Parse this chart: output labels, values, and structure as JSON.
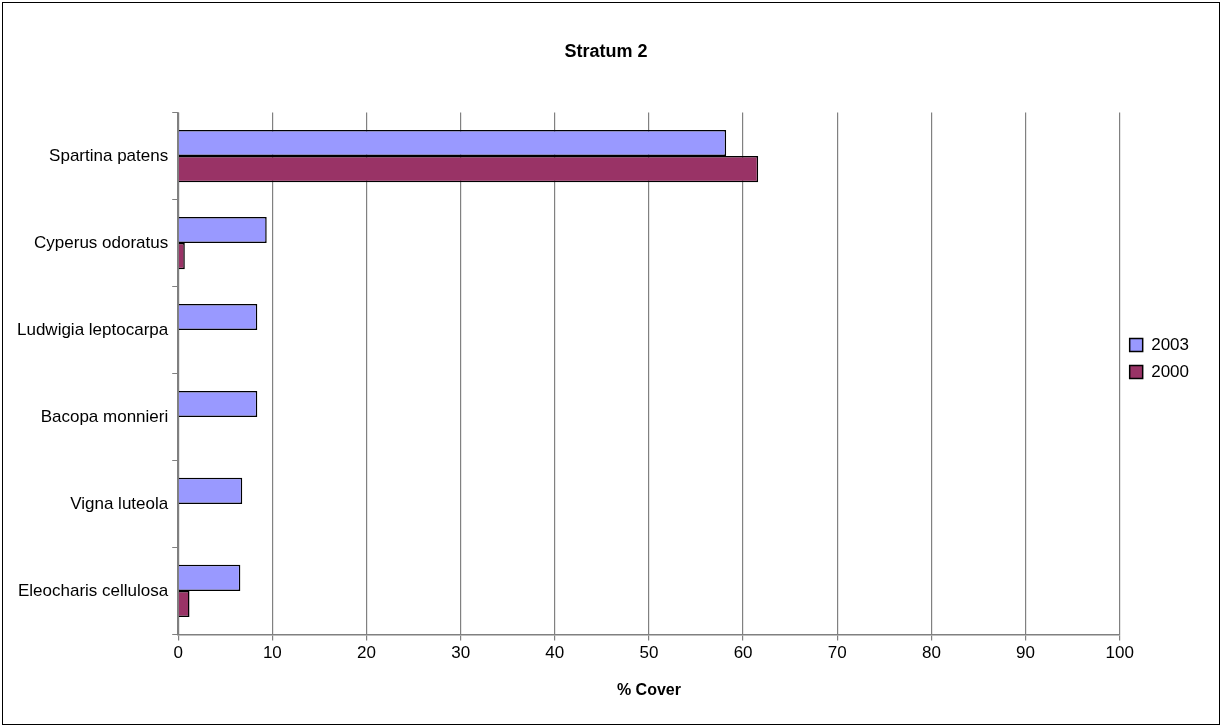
{
  "chart_data": {
    "type": "bar",
    "orientation": "horizontal",
    "title": "Stratum 2",
    "xlabel": "% Cover",
    "categories": [
      "Spartina patens",
      "Cyperus odoratus",
      "Ludwigia leptocarpa",
      "Bacopa monnieri",
      "Vigna luteola",
      "Eleocharis cellulosa"
    ],
    "series": [
      {
        "name": "2003",
        "color": "#9999ff",
        "values": [
          58.2,
          9.4,
          8.4,
          8.4,
          6.8,
          6.6
        ]
      },
      {
        "name": "2000",
        "color": "#993366",
        "values": [
          61.6,
          0.7,
          null,
          null,
          null,
          1.2
        ]
      }
    ],
    "xlim": [
      0,
      100
    ],
    "xticks": [
      0,
      10,
      20,
      30,
      40,
      50,
      60,
      70,
      80,
      90,
      100
    ],
    "grid": "x",
    "legend": "right"
  }
}
